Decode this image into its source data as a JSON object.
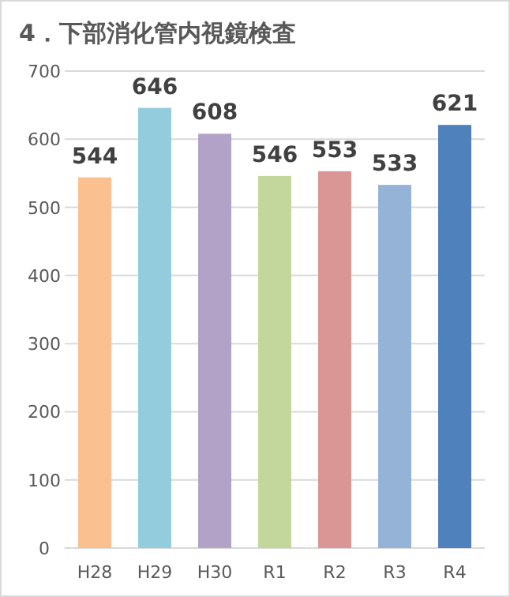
{
  "chart_data": {
    "type": "bar",
    "title": "4．下部消化管内視鏡検査",
    "categories": [
      "H28",
      "H29",
      "H30",
      "R1",
      "R2",
      "R3",
      "R4"
    ],
    "values": [
      544,
      646,
      608,
      546,
      553,
      533,
      621
    ],
    "colors": [
      "#fac090",
      "#93cddd",
      "#b3a2c7",
      "#c3d69b",
      "#d99694",
      "#95b3d7",
      "#4f81bd"
    ],
    "ylim": [
      0,
      700
    ],
    "yticks": [
      0,
      100,
      200,
      300,
      400,
      500,
      600,
      700
    ],
    "grid": "y",
    "data_labels": true
  }
}
